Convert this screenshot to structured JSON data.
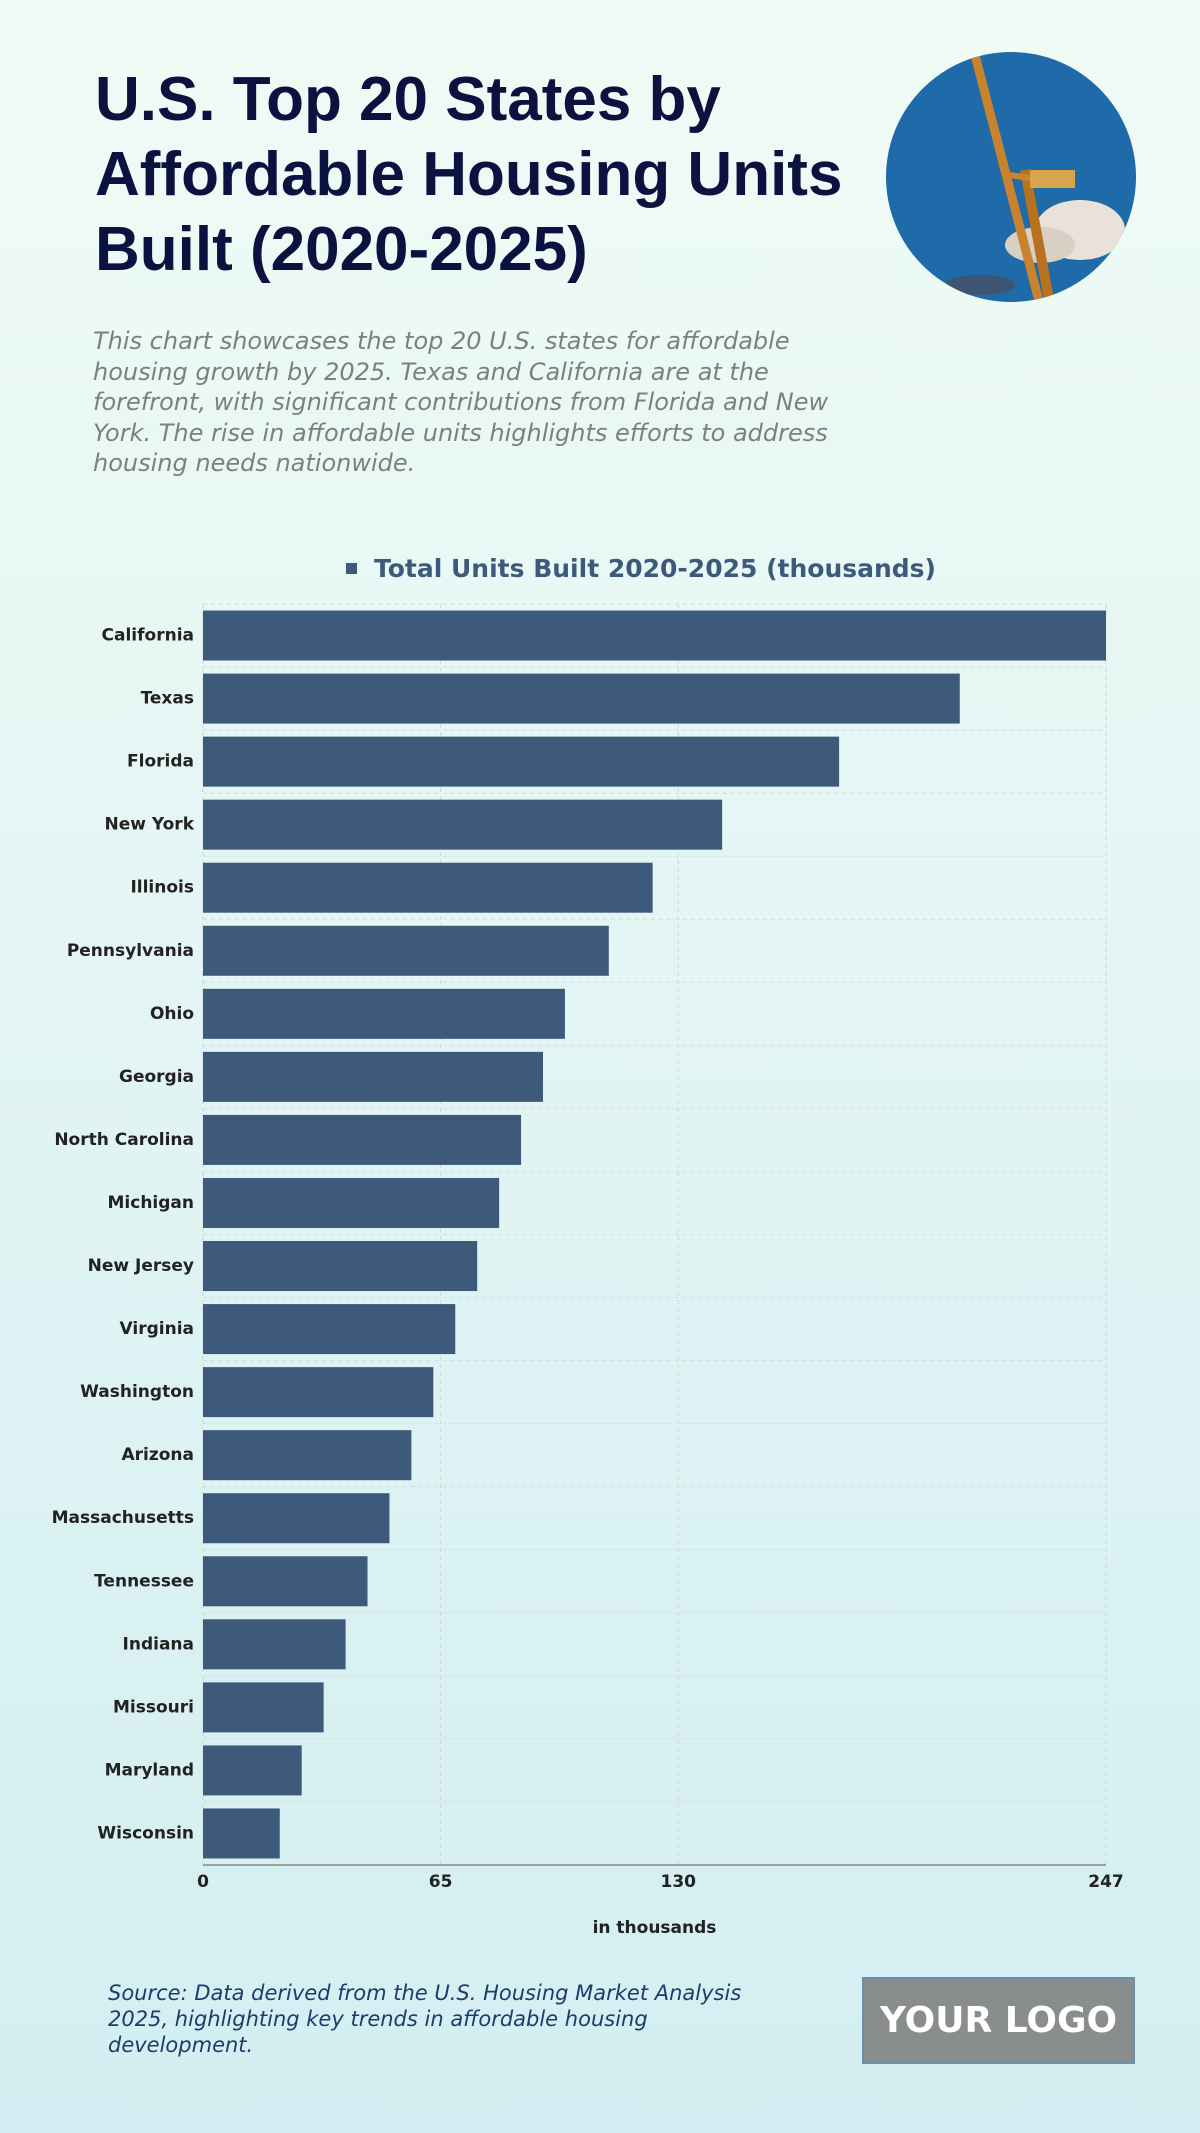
{
  "title": "U.S. Top 20 States by Affordable Housing Units Built (2020-2025)",
  "description": "This chart showcases the top 20 U.S. states for affordable housing growth by 2025. Texas and California are at the forefront, with significant contributions from Florida and New York. The rise in affordable units highlights efforts to address housing needs nationwide.",
  "source": "Source: Data derived from the U.S. Housing Market Analysis 2025, highlighting key trends in affordable housing development.",
  "logo": "YOUR LOGO",
  "chart_data": {
    "type": "bar",
    "orientation": "horizontal",
    "categories": [
      "California",
      "Texas",
      "Florida",
      "New York",
      "Illinois",
      "Pennsylvania",
      "Ohio",
      "Georgia",
      "North Carolina",
      "Michigan",
      "New Jersey",
      "Virginia",
      "Washington",
      "Arizona",
      "Massachusetts",
      "Tennessee",
      "Indiana",
      "Missouri",
      "Maryland",
      "Wisconsin"
    ],
    "series": [
      {
        "name": "Total Units Built 2020-2025 (thousands)",
        "color": "#3d5a7a",
        "values": [
          247,
          207,
          174,
          142,
          123,
          111,
          99,
          93,
          87,
          81,
          75,
          69,
          63,
          57,
          51,
          45,
          39,
          33,
          27,
          21
        ]
      }
    ],
    "x_label": "in thousands",
    "xlim": [
      0,
      247
    ],
    "xticks": [
      0,
      65,
      130,
      247
    ],
    "grid": true,
    "legend": "top"
  }
}
